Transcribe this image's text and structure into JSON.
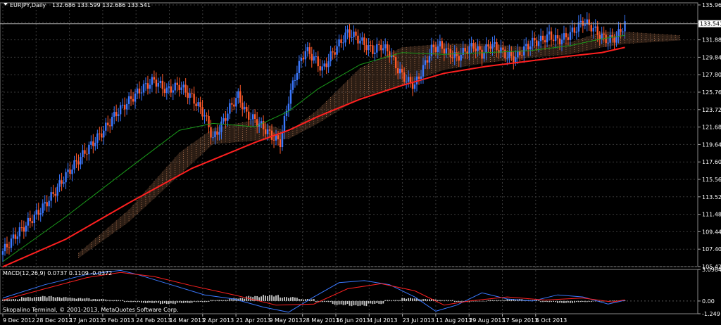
{
  "header": {
    "symbol": "EURJPY,Daily",
    "ohlc": "132.686 133.599 132.686 133.541"
  },
  "macd_header": "MACD(12,26,9) 0.0737 0.1109 -0.0372",
  "copyright": "Skopalino Terminal, © 2001-2013, MetaQuotes Software Corp.",
  "colors": {
    "background": "#000000",
    "grid": "#3a3a3a",
    "bull_candle": "#3a78ff",
    "bear_candle": "#ff5a2a",
    "ma_slow": "#ff2020",
    "ma_fast": "#1a9a1a",
    "cloud": "#f0a070",
    "macd_line": "#3a78ff",
    "signal_line": "#ff2020",
    "histogram": "#c8c8c8"
  },
  "chart_data": [
    {
      "type": "candlestick",
      "ylim": [
        105.42,
        135.96
      ],
      "y_ticks": [
        "135.960",
        "133.920",
        "131.880",
        "129.840",
        "127.800",
        "125.760",
        "123.720",
        "121.680",
        "119.640",
        "117.600",
        "115.560",
        "113.520",
        "111.480",
        "109.440",
        "107.400",
        "105.420"
      ],
      "current_price": "133.541",
      "x_ticks": [
        "9 Dec 2012",
        "28 Dec 2012",
        "17 Jan 2013",
        "5 Feb 2013",
        "24 Feb 2013",
        "14 Mar 2013",
        "2 Apr 2013",
        "21 Apr 2013",
        "9 May 2013",
        "28 May 2013",
        "16 Jun 2013",
        "4 Jul 2013",
        "23 Jul 2013",
        "11 Aug 2013",
        "29 Aug 2013",
        "17 Sep 2013",
        "6 Oct 2013"
      ],
      "close_path": [
        [
          0,
          107.2
        ],
        [
          6,
          109.0
        ],
        [
          12,
          110.5
        ],
        [
          18,
          112.0
        ],
        [
          24,
          113.8
        ],
        [
          30,
          116.0
        ],
        [
          36,
          117.8
        ],
        [
          42,
          119.5
        ],
        [
          48,
          121.2
        ],
        [
          54,
          123.2
        ],
        [
          60,
          124.6
        ],
        [
          66,
          126.0
        ],
        [
          72,
          127.0
        ],
        [
          78,
          125.8
        ],
        [
          84,
          126.4
        ],
        [
          90,
          125.0
        ],
        [
          96,
          123.0
        ],
        [
          100,
          120.2
        ],
        [
          104,
          121.8
        ],
        [
          108,
          123.8
        ],
        [
          112,
          125.2
        ],
        [
          116,
          123.0
        ],
        [
          120,
          122.4
        ],
        [
          124,
          121.5
        ],
        [
          128,
          120.5
        ],
        [
          132,
          119.8
        ],
        [
          136,
          124.8
        ],
        [
          140,
          128.2
        ],
        [
          144,
          130.5
        ],
        [
          148,
          129.6
        ],
        [
          152,
          128.2
        ],
        [
          156,
          129.8
        ],
        [
          160,
          131.2
        ],
        [
          164,
          132.5
        ],
        [
          168,
          132.0
        ],
        [
          172,
          131.2
        ],
        [
          176,
          130.4
        ],
        [
          180,
          131.0
        ],
        [
          184,
          130.2
        ],
        [
          188,
          128.2
        ],
        [
          192,
          127.0
        ],
        [
          196,
          126.4
        ],
        [
          200,
          128.4
        ],
        [
          204,
          130.6
        ],
        [
          208,
          131.0
        ],
        [
          212,
          130.2
        ],
        [
          216,
          129.6
        ],
        [
          220,
          130.4
        ],
        [
          224,
          131.0
        ],
        [
          228,
          130.0
        ],
        [
          232,
          131.2
        ],
        [
          236,
          130.6
        ],
        [
          240,
          129.8
        ],
        [
          244,
          129.6
        ],
        [
          248,
          130.6
        ],
        [
          252,
          131.4
        ],
        [
          256,
          131.6
        ],
        [
          260,
          132.2
        ],
        [
          264,
          131.6
        ],
        [
          268,
          132.0
        ],
        [
          272,
          132.8
        ],
        [
          276,
          133.8
        ],
        [
          280,
          133.2
        ],
        [
          284,
          132.2
        ],
        [
          288,
          131.6
        ],
        [
          292,
          132.0
        ],
        [
          296,
          133.54
        ]
      ],
      "ma_slow_path": [
        [
          0,
          105.4
        ],
        [
          30,
          108.6
        ],
        [
          60,
          112.8
        ],
        [
          90,
          116.8
        ],
        [
          120,
          119.8
        ],
        [
          136,
          121.2
        ],
        [
          150,
          122.8
        ],
        [
          170,
          124.8
        ],
        [
          190,
          126.4
        ],
        [
          210,
          127.8
        ],
        [
          230,
          128.6
        ],
        [
          250,
          129.2
        ],
        [
          270,
          129.8
        ],
        [
          285,
          130.2
        ],
        [
          296,
          130.8
        ]
      ],
      "ma_fast_path": [
        [
          0,
          106.0
        ],
        [
          30,
          111.2
        ],
        [
          60,
          116.8
        ],
        [
          84,
          121.2
        ],
        [
          100,
          122.0
        ],
        [
          120,
          121.6
        ],
        [
          136,
          123.4
        ],
        [
          150,
          126.0
        ],
        [
          170,
          128.8
        ],
        [
          190,
          130.2
        ],
        [
          210,
          130.0
        ],
        [
          230,
          130.2
        ],
        [
          250,
          130.4
        ],
        [
          270,
          131.0
        ],
        [
          285,
          131.8
        ],
        [
          296,
          132.2
        ]
      ],
      "cloud_top_path": [
        [
          36,
          107.0
        ],
        [
          60,
          112.0
        ],
        [
          84,
          118.6
        ],
        [
          100,
          121.4
        ],
        [
          120,
          122.4
        ],
        [
          136,
          121.0
        ],
        [
          150,
          123.6
        ],
        [
          170,
          128.4
        ],
        [
          190,
          130.8
        ],
        [
          210,
          131.2
        ],
        [
          230,
          131.2
        ],
        [
          250,
          130.8
        ],
        [
          270,
          131.4
        ],
        [
          285,
          132.6
        ],
        [
          296,
          132.6
        ],
        [
          322,
          132.2
        ]
      ],
      "cloud_bottom_path": [
        [
          36,
          106.4
        ],
        [
          60,
          110.6
        ],
        [
          84,
          116.0
        ],
        [
          100,
          119.6
        ],
        [
          120,
          120.0
        ],
        [
          136,
          120.2
        ],
        [
          150,
          122.0
        ],
        [
          170,
          125.0
        ],
        [
          190,
          126.4
        ],
        [
          210,
          128.2
        ],
        [
          230,
          129.0
        ],
        [
          250,
          129.6
        ],
        [
          270,
          130.0
        ],
        [
          285,
          130.8
        ],
        [
          296,
          131.2
        ],
        [
          322,
          131.6
        ]
      ]
    },
    {
      "type": "line",
      "name": "MACD",
      "ylim": [
        -1.249,
        3.0984
      ],
      "y_ticks": [
        "3.0984",
        "0.00",
        "-1.249"
      ],
      "macd_path": [
        [
          0,
          0.3
        ],
        [
          20,
          1.6
        ],
        [
          40,
          2.6
        ],
        [
          56,
          3.0
        ],
        [
          64,
          2.6
        ],
        [
          80,
          1.6
        ],
        [
          96,
          0.6
        ],
        [
          110,
          0.2
        ],
        [
          124,
          -0.6
        ],
        [
          136,
          -1.1
        ],
        [
          148,
          0.4
        ],
        [
          160,
          1.8
        ],
        [
          172,
          2.0
        ],
        [
          184,
          1.6
        ],
        [
          196,
          0.4
        ],
        [
          206,
          -1.0
        ],
        [
          216,
          -0.4
        ],
        [
          228,
          0.8
        ],
        [
          240,
          0.2
        ],
        [
          252,
          0.0
        ],
        [
          264,
          0.6
        ],
        [
          276,
          0.4
        ],
        [
          288,
          -0.3
        ],
        [
          296,
          0.07
        ]
      ],
      "signal_path": [
        [
          0,
          0.1
        ],
        [
          20,
          1.2
        ],
        [
          40,
          2.3
        ],
        [
          56,
          2.8
        ],
        [
          72,
          2.4
        ],
        [
          90,
          1.5
        ],
        [
          110,
          0.6
        ],
        [
          130,
          -0.4
        ],
        [
          148,
          -0.3
        ],
        [
          164,
          1.2
        ],
        [
          180,
          1.7
        ],
        [
          196,
          1.0
        ],
        [
          210,
          -0.4
        ],
        [
          222,
          0.0
        ],
        [
          240,
          0.4
        ],
        [
          258,
          0.1
        ],
        [
          276,
          0.3
        ],
        [
          290,
          -0.1
        ],
        [
          296,
          0.11
        ]
      ],
      "histogram": [
        0.2,
        0.4,
        0.5,
        0.4,
        0.3,
        0.2,
        0.1,
        -0.1,
        -0.2,
        -0.3,
        -0.2,
        -0.1,
        0.1,
        0.3,
        0.5,
        0.6,
        0.4,
        0.2,
        -0.1,
        -0.4,
        -0.5,
        -0.3,
        0.1,
        0.3,
        0.2,
        0.1,
        -0.1,
        0.0,
        0.1,
        0.2,
        0.1,
        -0.1,
        -0.2,
        -0.1,
        0.0,
        0.05
      ]
    }
  ]
}
